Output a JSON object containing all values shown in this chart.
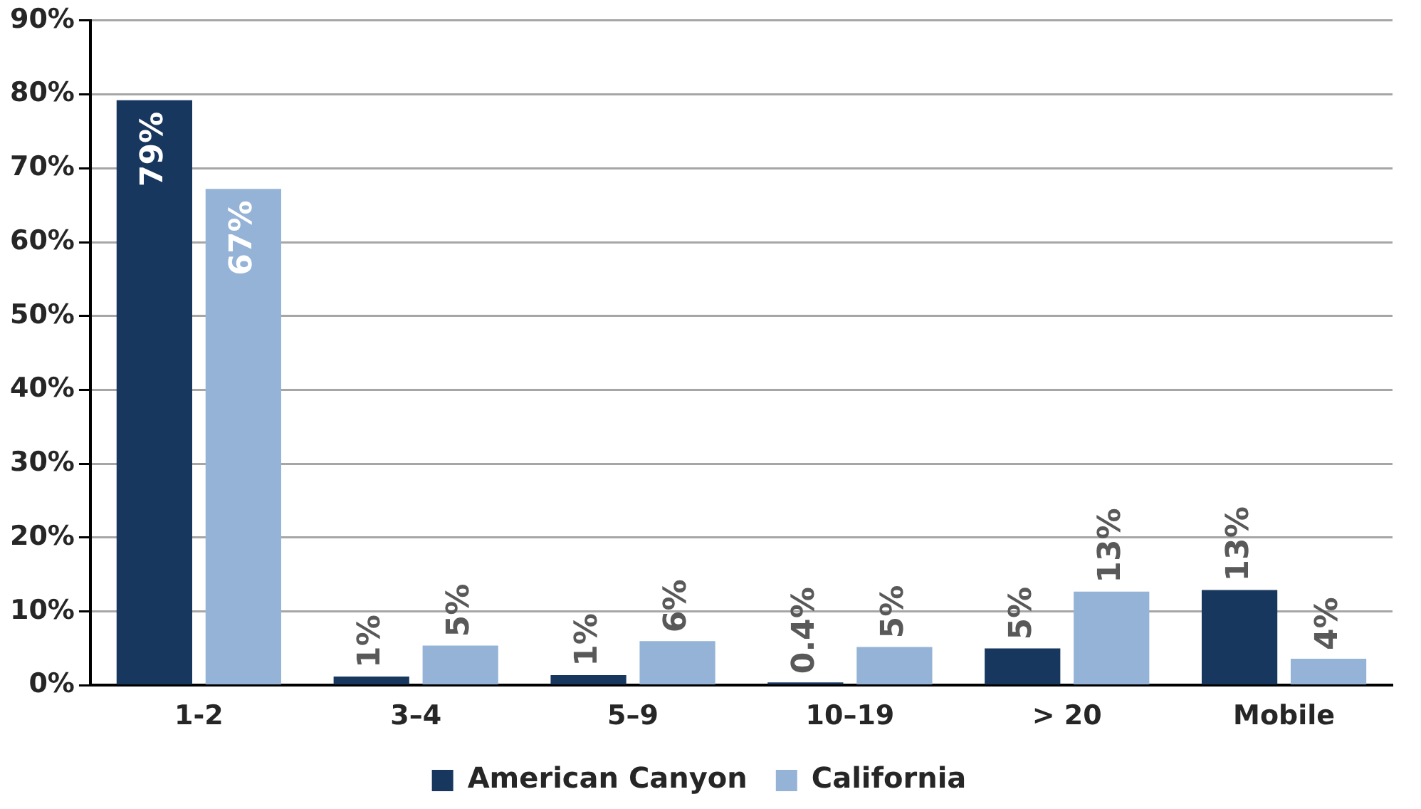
{
  "chart_data": {
    "type": "bar",
    "categories": [
      "1-2",
      "3–4",
      "5–9",
      "10–19",
      "> 20",
      "Mobile"
    ],
    "series": [
      {
        "name": "American Canyon",
        "color": "#17375e",
        "values": [
          79.2,
          1.2,
          1.4,
          0.4,
          5.0,
          12.9
        ],
        "value_labels": [
          "79%",
          "1%",
          "1%",
          "0.4%",
          "5%",
          "13%"
        ]
      },
      {
        "name": "California",
        "color": "#95b3d7",
        "values": [
          67.2,
          5.4,
          6.0,
          5.2,
          12.7,
          3.6
        ],
        "value_labels": [
          "67%",
          "5%",
          "6%",
          "5%",
          "13%",
          "4%"
        ]
      }
    ],
    "ylim": [
      0,
      90
    ],
    "yticks": [
      {
        "value": 0,
        "label": "0%"
      },
      {
        "value": 10,
        "label": "10%"
      },
      {
        "value": 20,
        "label": "20%"
      },
      {
        "value": 30,
        "label": "30%"
      },
      {
        "value": 40,
        "label": "40%"
      },
      {
        "value": 50,
        "label": "50%"
      },
      {
        "value": 60,
        "label": "60%"
      },
      {
        "value": 70,
        "label": "70%"
      },
      {
        "value": 80,
        "label": "80%"
      },
      {
        "value": 90,
        "label": "90%"
      }
    ],
    "grid": "y",
    "legend": "bottom"
  }
}
